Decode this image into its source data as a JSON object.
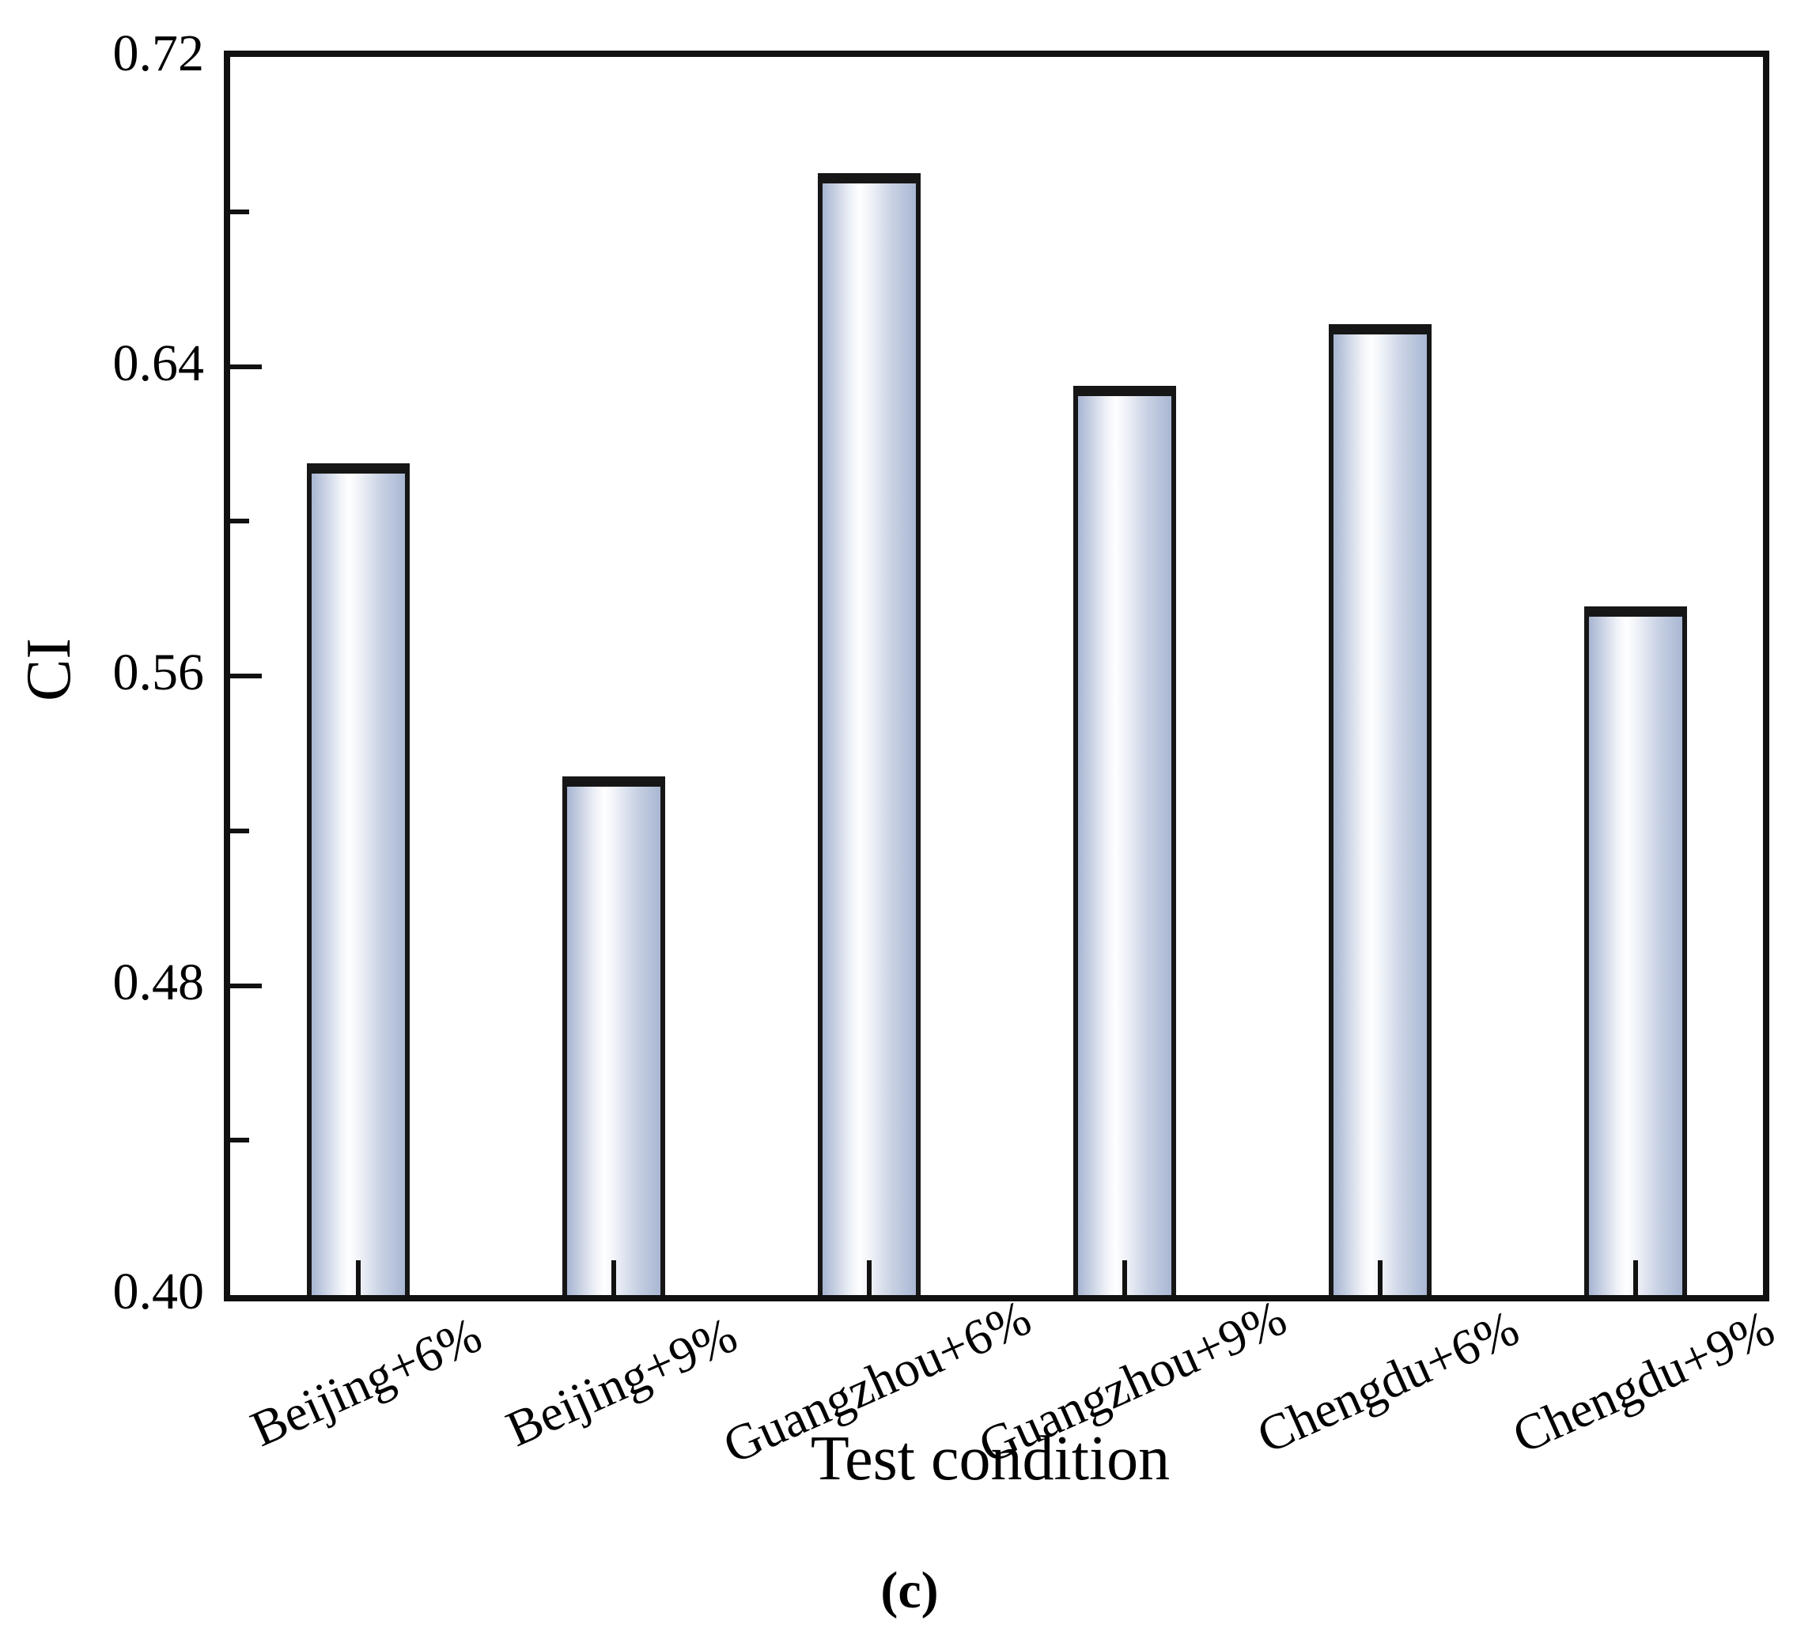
{
  "figure": {
    "caption": "(c)"
  },
  "chart_data": {
    "type": "bar",
    "title": "",
    "xlabel": "Test condition",
    "ylabel": "CI",
    "categories": [
      "Beijing+6%",
      "Beijing+9%",
      "Guangzhou+6%",
      "Guangzhou+9%",
      "Chengdu+6%",
      "Chengdu+9%"
    ],
    "values": [
      0.615,
      0.534,
      0.69,
      0.635,
      0.651,
      0.578
    ],
    "ylim": [
      0.4,
      0.72
    ],
    "y_major_ticks": [
      0.4,
      0.48,
      0.56,
      0.64,
      0.72
    ],
    "y_tick_labels": [
      "0.40",
      "0.48",
      "0.56",
      "0.64",
      "0.72"
    ],
    "y_minor_ticks": [
      0.44,
      0.52,
      0.6,
      0.68
    ],
    "grid": false,
    "legend": null,
    "bar_edge_color": "#161616",
    "bar_gradient": [
      "#a7b5d2",
      "#ffffff",
      "#a9b7d3"
    ],
    "axis_color": "#111111"
  }
}
